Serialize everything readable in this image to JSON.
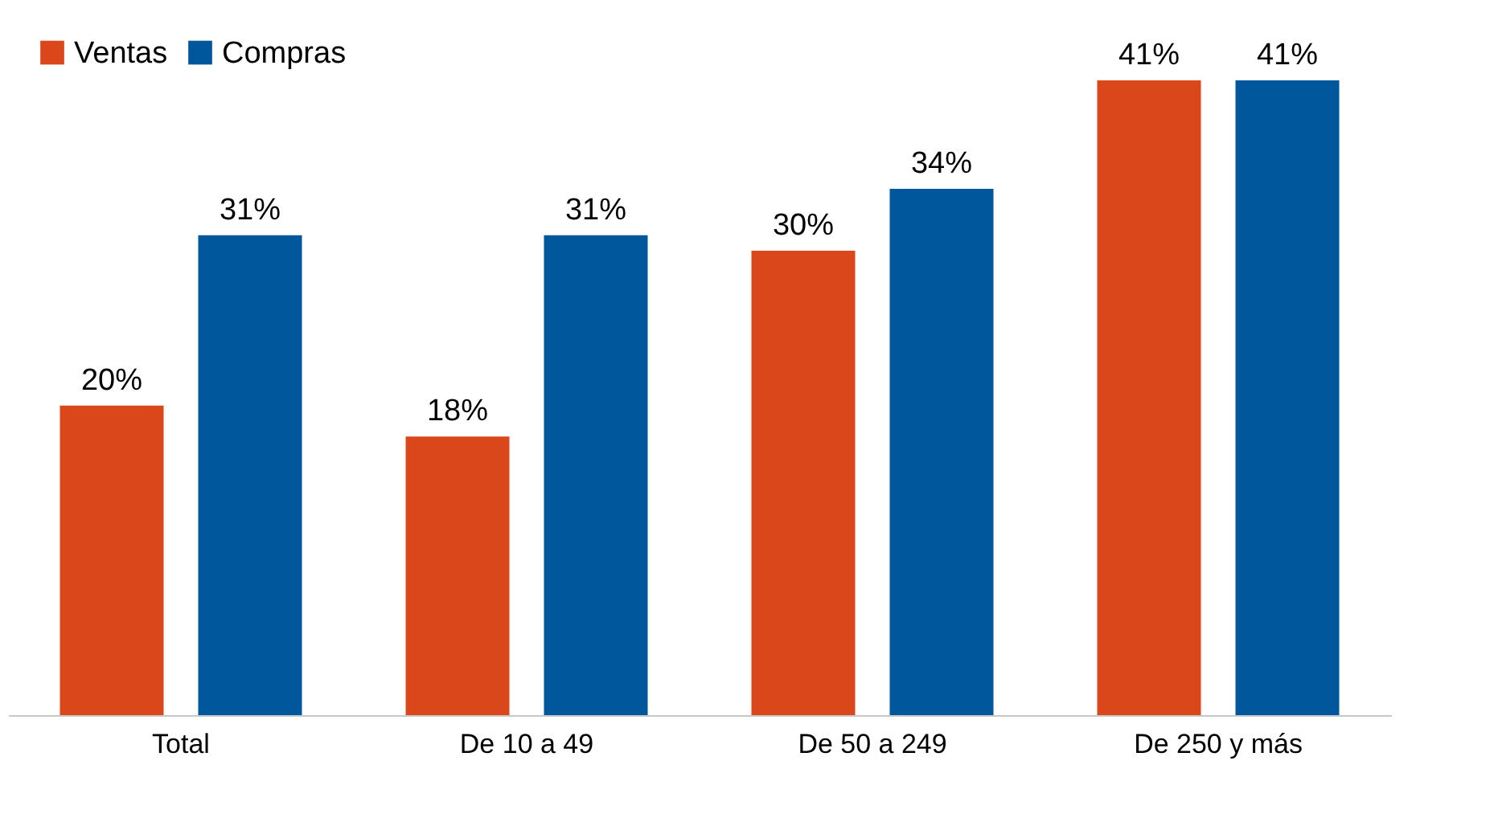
{
  "chart_data": {
    "type": "bar",
    "categories": [
      "Total",
      "De 10 a 49",
      "De 50 a 249",
      "De 250 y más"
    ],
    "series": [
      {
        "name": "Ventas",
        "color": "#d9471b",
        "values": [
          20,
          18,
          30,
          41
        ],
        "value_labels": [
          "20%",
          "18%",
          "30%",
          "41%"
        ]
      },
      {
        "name": "Compras",
        "color": "#00579c",
        "values": [
          31,
          31,
          34,
          41
        ],
        "value_labels": [
          "31%",
          "31%",
          "34%",
          "41%"
        ]
      }
    ],
    "legend": "top left",
    "grid": false
  }
}
